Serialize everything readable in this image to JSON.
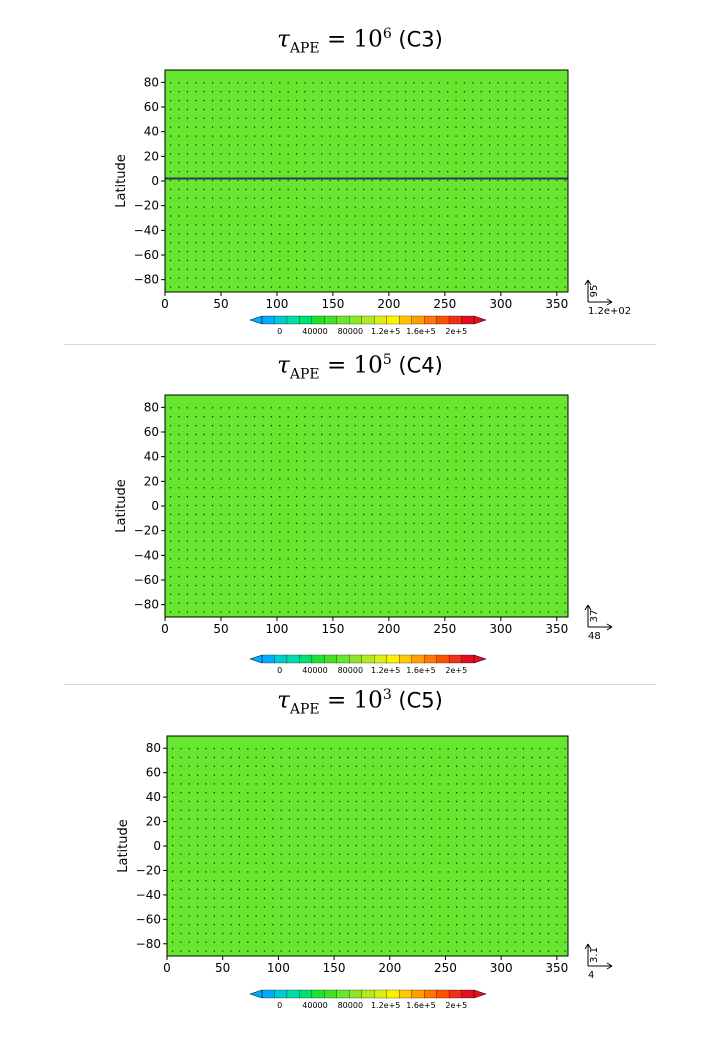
{
  "chart_data": [
    {
      "type": "heatmap",
      "title": {
        "symbol": "τ",
        "sub": "APE",
        "op": " = ",
        "base": "10",
        "exp": "6",
        "case": "  (C3)"
      },
      "ylabel": "Latitude",
      "xticks": [
        "0",
        "50",
        "100",
        "150",
        "200",
        "250",
        "300",
        "350"
      ],
      "yticks": [
        "80",
        "60",
        "40",
        "20",
        "0",
        "−20",
        "−40",
        "−60",
        "−80"
      ],
      "xlim": [
        0,
        360
      ],
      "ylim": [
        -90,
        90
      ],
      "field_color": "#66e62e",
      "vector_reference": {
        "vertical": "95",
        "horizontal": "1.2e+02"
      },
      "colorbar_ticks": [
        "0",
        "40000",
        "80000",
        "1.2e+5",
        "1.6e+5",
        "2e+5"
      ],
      "colorbar_range": [
        -20000,
        220000
      ]
    },
    {
      "type": "heatmap",
      "title": {
        "symbol": "τ",
        "sub": "APE",
        "op": " = ",
        "base": "10",
        "exp": "5",
        "case": " (C4)"
      },
      "ylabel": "Latitude",
      "xticks": [
        "0",
        "50",
        "100",
        "150",
        "200",
        "250",
        "300",
        "350"
      ],
      "yticks": [
        "80",
        "60",
        "40",
        "20",
        "0",
        "−20",
        "−40",
        "−60",
        "−80"
      ],
      "xlim": [
        0,
        360
      ],
      "ylim": [
        -90,
        90
      ],
      "field_color": "#66e62e",
      "vector_reference": {
        "vertical": "37",
        "horizontal": "48"
      },
      "colorbar_ticks": [
        "0",
        "40000",
        "80000",
        "1.2e+5",
        "1.6e+5",
        "2e+5"
      ],
      "colorbar_range": [
        -20000,
        220000
      ]
    },
    {
      "type": "heatmap",
      "title": {
        "symbol": "τ",
        "sub": "APE",
        "op": " = ",
        "base": "10",
        "exp": "3",
        "case": " (C5)"
      },
      "ylabel": "Latitude",
      "xticks": [
        "0",
        "50",
        "100",
        "150",
        "200",
        "250",
        "300",
        "350"
      ],
      "yticks": [
        "80",
        "60",
        "40",
        "20",
        "0",
        "−20",
        "−40",
        "−60",
        "−80"
      ],
      "xlim": [
        0,
        360
      ],
      "ylim": [
        -90,
        90
      ],
      "field_color": "#66e62e",
      "vector_reference": {
        "vertical": "3.1",
        "horizontal": "4"
      },
      "colorbar_ticks": [
        "0",
        "40000",
        "80000",
        "1.2e+5",
        "1.6e+5",
        "2e+5"
      ],
      "colorbar_range": [
        -20000,
        220000
      ]
    }
  ],
  "colorbar_colors": [
    "#00aaff",
    "#00cccc",
    "#00ddaa",
    "#00e070",
    "#20e030",
    "#44e028",
    "#66e62e",
    "#8ee628",
    "#b4e820",
    "#dcee18",
    "#fff000",
    "#ffc800",
    "#ffa000",
    "#ff7800",
    "#ff5000",
    "#f03018",
    "#e01020"
  ]
}
